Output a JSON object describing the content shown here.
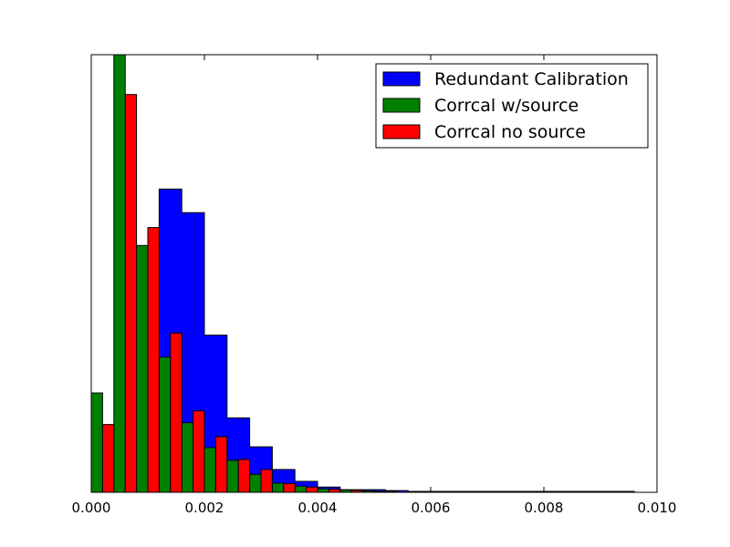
{
  "chart_data": {
    "type": "bar",
    "subtype": "histogram",
    "title": "",
    "xlabel": "",
    "ylabel": "",
    "xlim": [
      0.0,
      0.01
    ],
    "ylim": [
      0,
      1.0
    ],
    "xticks": [
      "0.000",
      "0.002",
      "0.004",
      "0.006",
      "0.008",
      "0.010"
    ],
    "yticks_visible": false,
    "grid": false,
    "legend_position": "upper right",
    "bin_edges": [
      0.0,
      0.0004,
      0.0008,
      0.0012,
      0.0016,
      0.002,
      0.0024,
      0.0028,
      0.0032,
      0.0036,
      0.004,
      0.0044,
      0.0048,
      0.0052,
      0.0056,
      0.006,
      0.0064,
      0.0068,
      0.0072,
      0.0076,
      0.008,
      0.0084,
      0.0088,
      0.0092,
      0.0096
    ],
    "series": [
      {
        "name": "Redundant Calibration",
        "color": "#0000ff",
        "values": [
          0.011,
          0.011,
          0.023,
          0.693,
          0.639,
          0.359,
          0.17,
          0.104,
          0.052,
          0.025,
          0.012,
          0.006,
          0.006,
          0.004,
          0.002,
          0.002,
          0.002,
          0.002,
          0.002,
          0.002,
          0.002,
          0.002,
          0.002,
          0.002
        ]
      },
      {
        "name": "Corrcal w/source",
        "color": "#008000",
        "values": [
          0.227,
          1.0,
          0.564,
          0.309,
          0.159,
          0.102,
          0.073,
          0.041,
          0.021,
          0.014,
          0.008,
          0.005,
          0.003,
          0.002,
          0.001,
          0.001,
          0.001,
          0.0,
          0.0,
          0.0,
          0.0,
          0.0,
          0.0,
          0.0
        ]
      },
      {
        "name": "Corrcal no source",
        "color": "#ff0000",
        "values": [
          0.155,
          0.909,
          0.605,
          0.364,
          0.186,
          0.127,
          0.075,
          0.052,
          0.02,
          0.012,
          0.007,
          0.004,
          0.002,
          0.001,
          0.001,
          0.001,
          0.0,
          0.0,
          0.0,
          0.0,
          0.0,
          0.0,
          0.0,
          0.0
        ]
      }
    ]
  }
}
